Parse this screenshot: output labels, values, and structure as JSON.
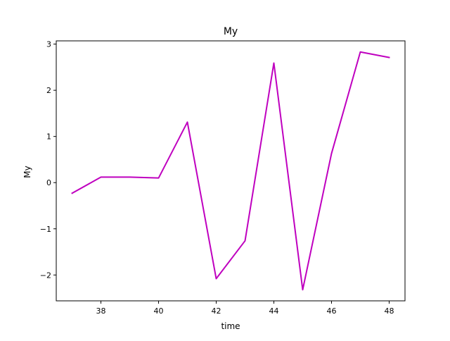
{
  "chart_data": {
    "type": "line",
    "title": "My",
    "xlabel": "time",
    "ylabel": "My",
    "xlim": [
      36.45,
      48.55
    ],
    "ylim": [
      -2.56,
      3.07
    ],
    "x_ticks": [
      38,
      40,
      42,
      44,
      46,
      48
    ],
    "y_ticks": [
      -2,
      -1,
      0,
      1,
      2,
      3
    ],
    "x_tick_labels": [
      "38",
      "40",
      "42",
      "44",
      "46",
      "48"
    ],
    "y_tick_labels": [
      "−2",
      "−1",
      "0",
      "1",
      "2",
      "3"
    ],
    "grid": false,
    "legend": "none",
    "series": [
      {
        "color": "#bf00bf",
        "x": [
          37,
          38,
          39,
          40,
          41,
          42,
          43,
          44,
          45,
          46,
          47,
          48
        ],
        "y": [
          -0.23,
          0.12,
          0.12,
          0.1,
          1.31,
          -2.08,
          -1.26,
          2.59,
          -2.32,
          0.63,
          2.83,
          2.71
        ]
      }
    ]
  }
}
